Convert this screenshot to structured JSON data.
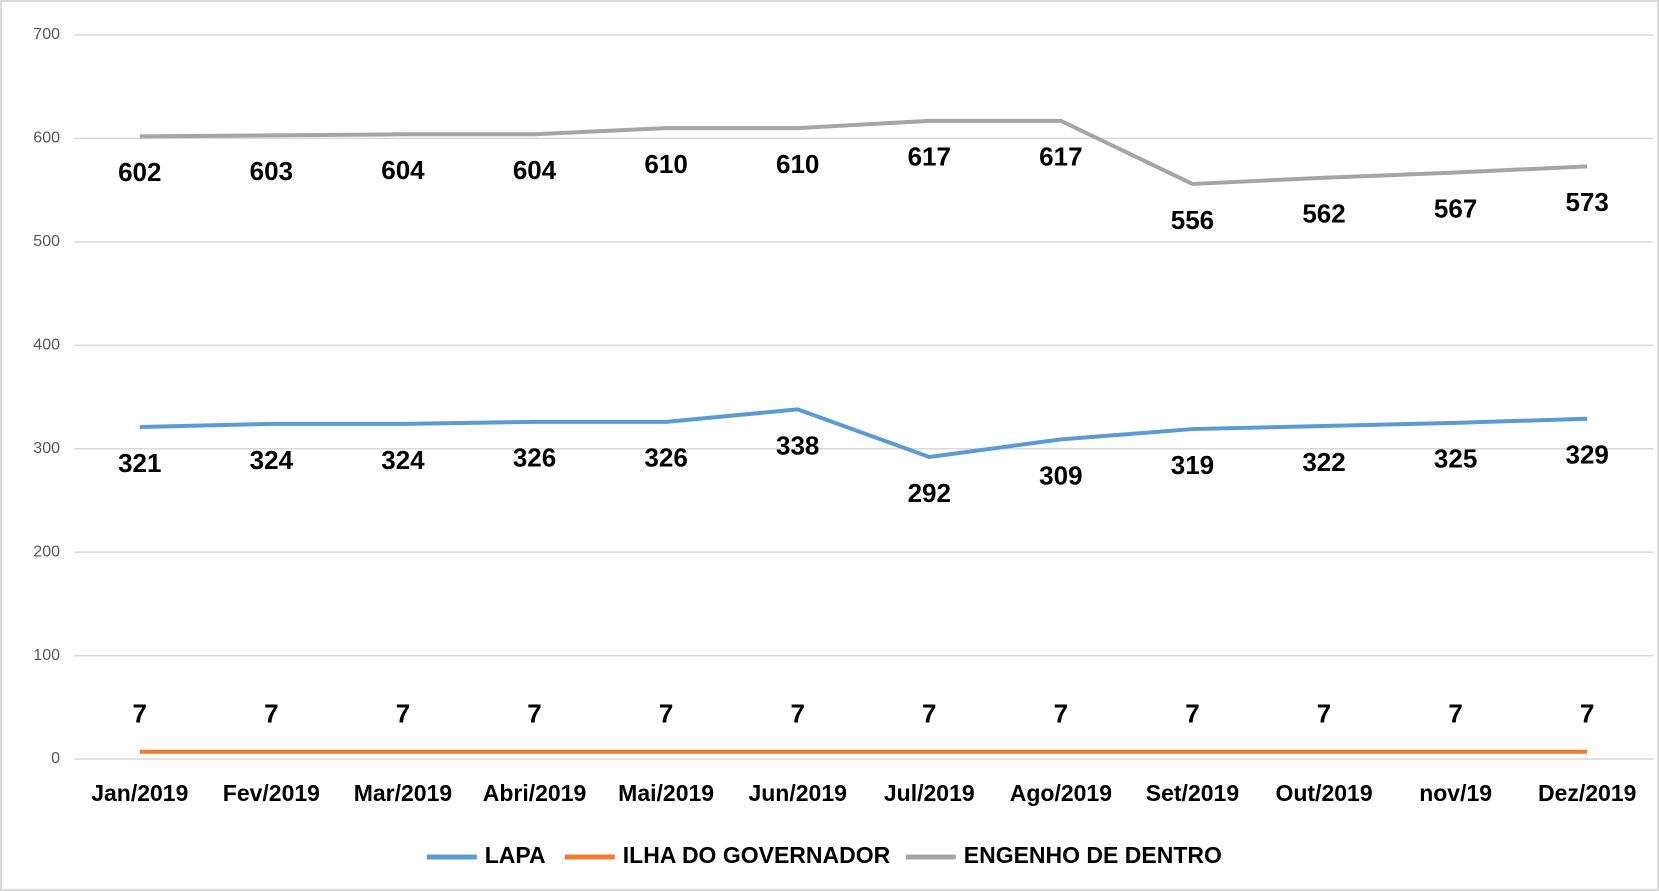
{
  "chart_data": {
    "type": "line",
    "categories": [
      "Jan/2019",
      "Fev/2019",
      "Mar/2019",
      "Abri/2019",
      "Mai/2019",
      "Jun/2019",
      "Jul/2019",
      "Ago/2019",
      "Set/2019",
      "Out/2019",
      "nov/19",
      "Dez/2019"
    ],
    "series": [
      {
        "name": "LAPA",
        "color": "#5b9bd5",
        "values": [
          321,
          324,
          324,
          326,
          326,
          338,
          292,
          309,
          319,
          322,
          325,
          329
        ]
      },
      {
        "name": "ILHA DO GOVERNADOR",
        "color": "#ed7d31",
        "values": [
          7,
          7,
          7,
          7,
          7,
          7,
          7,
          7,
          7,
          7,
          7,
          7
        ]
      },
      {
        "name": "ENGENHO DE DENTRO",
        "color": "#a5a5a5",
        "values": [
          602,
          603,
          604,
          604,
          610,
          610,
          617,
          617,
          556,
          562,
          567,
          573
        ]
      }
    ],
    "ylim": [
      0,
      700
    ],
    "yticks": [
      0,
      100,
      200,
      300,
      400,
      500,
      600,
      700
    ],
    "grid": true,
    "legend": "bottom"
  }
}
